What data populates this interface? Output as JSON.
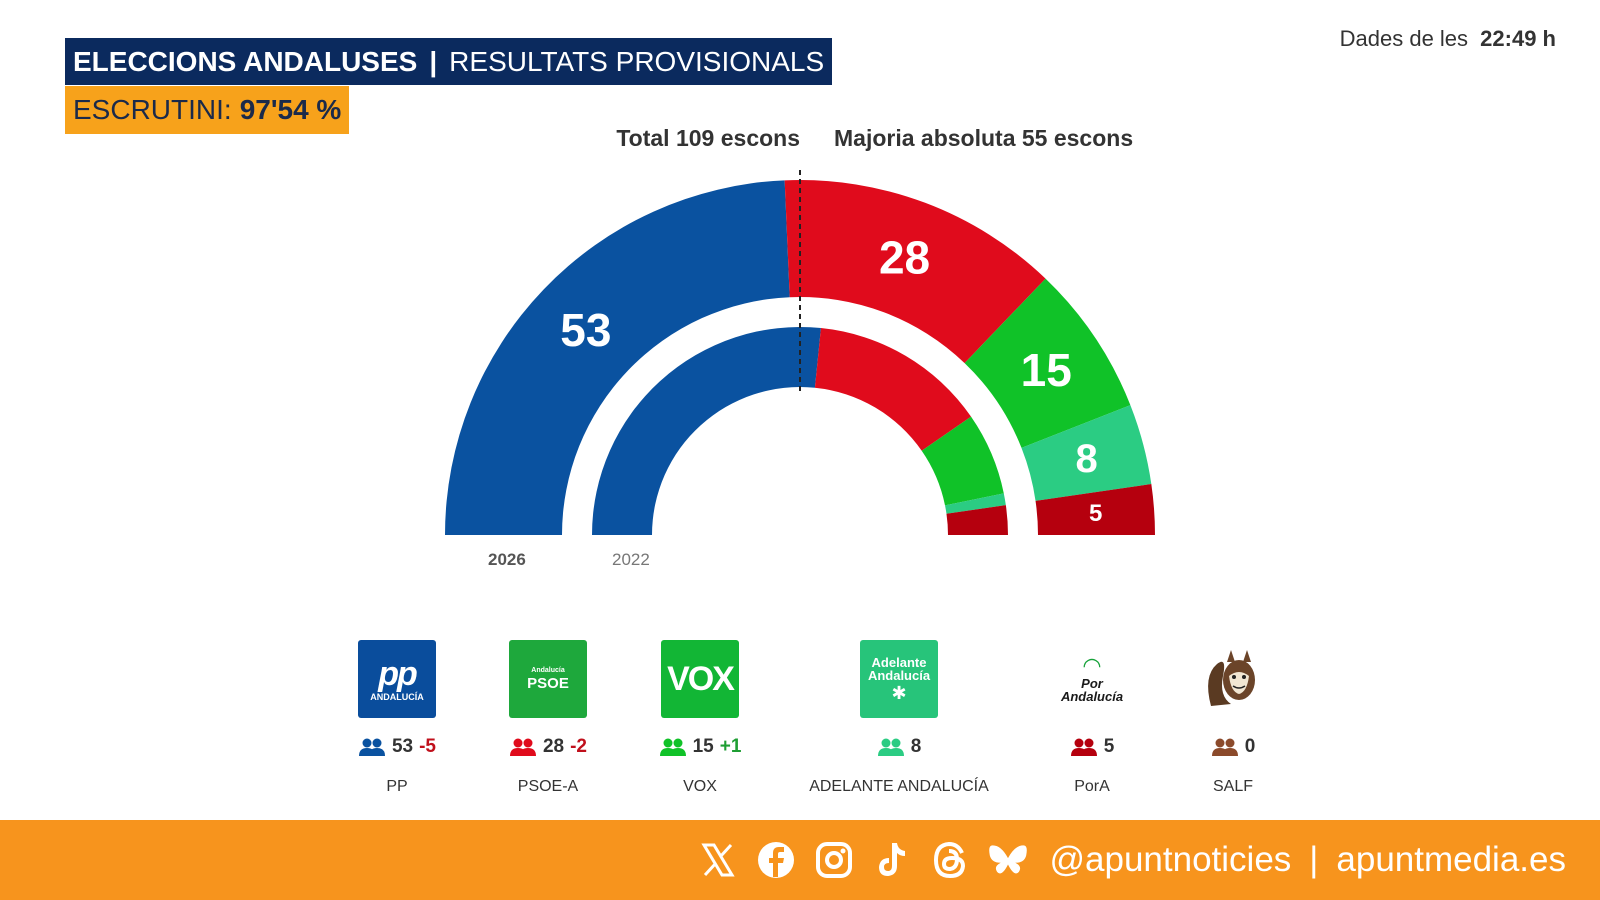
{
  "header": {
    "title_bold": "ELECCIONS ANDALUSES",
    "title_sep": "|",
    "title_rest": "RESULTATS PROVISIONALS",
    "scrutiny_label": "ESCRUTINI:",
    "scrutiny_value": "97'54 %",
    "timestamp_label": "Dades de les",
    "timestamp_value": "22:49 h"
  },
  "chart_data": {
    "type": "hemicycle",
    "total_label": "Total 109 escons",
    "majority_label": "Majoria absoluta 55 escons",
    "total_seats": 109,
    "majority": 55,
    "series": [
      {
        "name": "2026",
        "values": [
          53,
          28,
          15,
          8,
          5,
          0
        ],
        "labels": [
          "53",
          "28",
          "15",
          "8",
          "5",
          ""
        ]
      },
      {
        "name": "2022",
        "values": [
          58,
          30,
          14,
          2,
          5,
          0
        ],
        "labels": []
      }
    ],
    "categories": [
      "PP",
      "PSOE-A",
      "VOX",
      "ADELANTE ANDALUCÍA",
      "PorA",
      "SALF"
    ],
    "colors": [
      "#0a52a0",
      "#e00b1c",
      "#10c228",
      "#2bcc83",
      "#b5000e",
      "#8b4a2b"
    ]
  },
  "parties": [
    {
      "name": "PP",
      "seats": "53",
      "diff": "-5",
      "diff_type": "neg",
      "logo_big": "pp",
      "logo_small": "ANDALUCÍA",
      "icon_color": "#0a52a0"
    },
    {
      "name": "PSOE-A",
      "seats": "28",
      "diff": "-2",
      "diff_type": "neg",
      "logo_big": "PSOE",
      "logo_small": "Andalucía",
      "icon_color": "#e00b1c"
    },
    {
      "name": "VOX",
      "seats": "15",
      "diff": "+1",
      "diff_type": "pos",
      "logo_big": "VOX",
      "logo_small": "",
      "icon_color": "#10c228"
    },
    {
      "name": "ADELANTE ANDALUCÍA",
      "seats": "8",
      "diff": "",
      "diff_type": "none",
      "logo_big": "Adelante Andalucía",
      "logo_small": "",
      "icon_color": "#2bcc83"
    },
    {
      "name": "PorA",
      "seats": "5",
      "diff": "",
      "diff_type": "none",
      "logo_big": "Por Andalucía",
      "logo_small": "",
      "icon_color": "#b5000e"
    },
    {
      "name": "SALF",
      "seats": "0",
      "diff": "",
      "diff_type": "none",
      "logo_big": "",
      "logo_small": "",
      "icon_color": "#8b4a2b"
    }
  ],
  "footer": {
    "social_icons": [
      "x-icon",
      "facebook-icon",
      "instagram-icon",
      "tiktok-icon",
      "threads-icon",
      "bluesky-icon"
    ],
    "handle": "@apuntnoticies",
    "divider": "|",
    "site": "apuntmedia.es"
  }
}
